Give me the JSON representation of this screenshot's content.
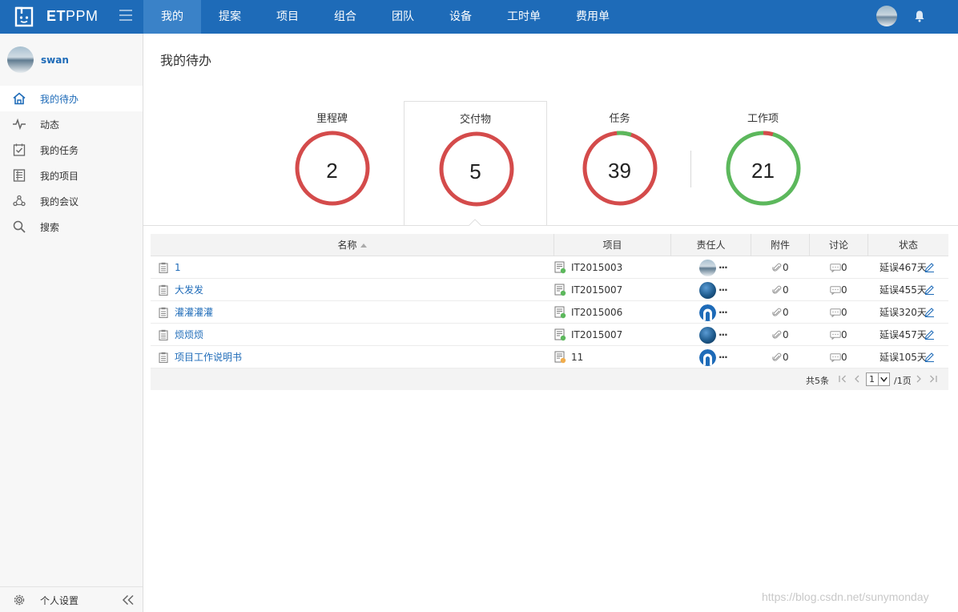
{
  "brand": {
    "prefix": "ET",
    "suffix": "PPM"
  },
  "nav": {
    "items": [
      {
        "label": "我的",
        "active": true
      },
      {
        "label": "提案"
      },
      {
        "label": "项目"
      },
      {
        "label": "组合"
      },
      {
        "label": "团队"
      },
      {
        "label": "设备"
      },
      {
        "label": "工时单"
      },
      {
        "label": "费用单"
      }
    ]
  },
  "colors": {
    "header": "#1e6bb8",
    "header_active": "#3a82c8",
    "ring_red": "#d44b4b",
    "ring_green": "#5cb85c",
    "link": "#1e6bb8"
  },
  "sidebar": {
    "user": "swan",
    "items": [
      {
        "label": "我的待办",
        "icon": "home-icon",
        "active": true
      },
      {
        "label": "动态",
        "icon": "pulse-icon"
      },
      {
        "label": "我的任务",
        "icon": "task-check-icon"
      },
      {
        "label": "我的项目",
        "icon": "project-list-icon"
      },
      {
        "label": "我的会议",
        "icon": "meeting-icon"
      },
      {
        "label": "搜索",
        "icon": "search-icon"
      }
    ],
    "settings": "个人设置"
  },
  "page": {
    "title": "我的待办"
  },
  "stats": [
    {
      "label": "里程碑",
      "value": "2",
      "ring": "red"
    },
    {
      "label": "交付物",
      "value": "5",
      "ring": "red",
      "selected": true
    },
    {
      "label": "任务",
      "value": "39",
      "ring": "mostly-red"
    },
    {
      "label": "工作项",
      "value": "21",
      "ring": "mostly-green"
    }
  ],
  "table": {
    "columns": [
      "名称",
      "项目",
      "责任人",
      "附件",
      "讨论",
      "状态"
    ],
    "rows": [
      {
        "name": "1",
        "project": "IT2015003",
        "owner_more": "···",
        "attachments": "0",
        "discussions": "0",
        "status": "延误467天"
      },
      {
        "name": "大发发",
        "project": "IT2015007",
        "owner_more": "···",
        "attachments": "0",
        "discussions": "0",
        "status": "延误455天"
      },
      {
        "name": "灌灌灌灌",
        "project": "IT2015006",
        "owner_more": "···",
        "attachments": "0",
        "discussions": "0",
        "status": "延误320天"
      },
      {
        "name": "烦烦烦",
        "project": "IT2015007",
        "owner_more": "···",
        "attachments": "0",
        "discussions": "0",
        "status": "延误457天"
      },
      {
        "name": "项目工作说明书",
        "project": "11",
        "owner_more": "···",
        "attachments": "0",
        "discussions": "0",
        "status": "延误105天"
      }
    ],
    "footer": {
      "total": "共5条",
      "page": "1",
      "pages": "/1页"
    }
  },
  "watermark": "https://blog.csdn.net/sunymonday"
}
